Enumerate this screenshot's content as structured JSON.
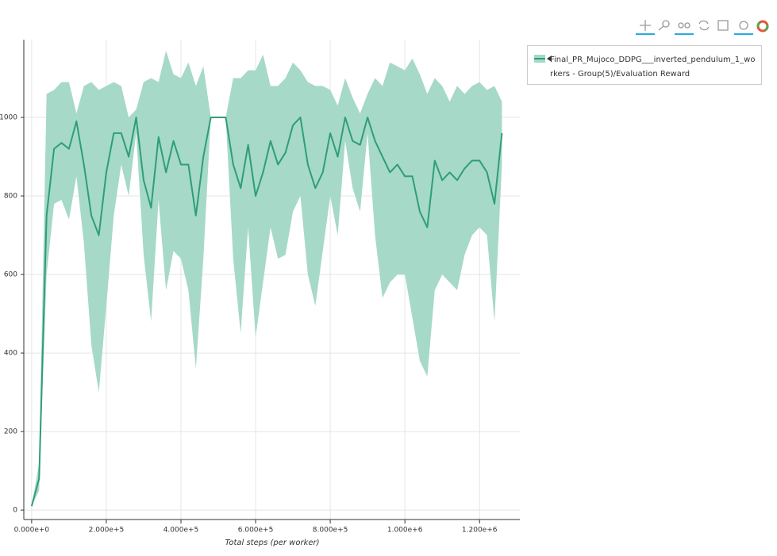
{
  "chart_data": {
    "type": "line",
    "x_label": "Total steps (per worker)",
    "x": [
      0,
      20000,
      40000,
      60000,
      80000,
      100000,
      120000,
      140000,
      160000,
      180000,
      200000,
      220000,
      240000,
      260000,
      280000,
      300000,
      320000,
      340000,
      360000,
      380000,
      400000,
      420000,
      440000,
      460000,
      480000,
      500000,
      520000,
      540000,
      560000,
      580000,
      600000,
      620000,
      640000,
      660000,
      680000,
      700000,
      720000,
      740000,
      760000,
      780000,
      800000,
      820000,
      840000,
      860000,
      880000,
      900000,
      920000,
      940000,
      960000,
      980000,
      1000000,
      1020000,
      1040000,
      1060000,
      1080000,
      1100000,
      1120000,
      1140000,
      1160000,
      1180000,
      1200000,
      1220000,
      1240000,
      1260000
    ],
    "series": [
      {
        "name": "Final_PR_Mujoco_DDPG___inverted_pendulum_1_workers - Group(5)/Evaluation Reward",
        "color": "#2e9e78",
        "band_color": "#a6d9c8",
        "values": [
          10,
          80,
          750,
          920,
          935,
          920,
          990,
          880,
          750,
          700,
          860,
          960,
          960,
          900,
          1000,
          840,
          770,
          950,
          860,
          940,
          880,
          880,
          750,
          900,
          1000,
          1000,
          1000,
          880,
          820,
          930,
          800,
          860,
          940,
          880,
          910,
          980,
          1000,
          880,
          820,
          860,
          960,
          900,
          1000,
          940,
          930,
          1000,
          940,
          900,
          860,
          880,
          850,
          850,
          760,
          720,
          890,
          840,
          860,
          840,
          870,
          890,
          890,
          860,
          780,
          960
        ],
        "lower": [
          10,
          50,
          600,
          780,
          790,
          740,
          850,
          680,
          420,
          300,
          520,
          750,
          880,
          800,
          960,
          650,
          480,
          790,
          560,
          660,
          640,
          560,
          360,
          640,
          1000,
          1000,
          1000,
          640,
          450,
          720,
          440,
          580,
          720,
          640,
          650,
          760,
          800,
          600,
          520,
          660,
          800,
          700,
          940,
          820,
          760,
          960,
          700,
          540,
          580,
          600,
          600,
          490,
          380,
          340,
          560,
          600,
          580,
          560,
          650,
          700,
          720,
          700,
          480,
          880
        ],
        "upper": [
          10,
          120,
          1060,
          1070,
          1090,
          1090,
          1010,
          1080,
          1090,
          1070,
          1080,
          1090,
          1080,
          1000,
          1020,
          1090,
          1100,
          1090,
          1170,
          1110,
          1100,
          1140,
          1080,
          1130,
          1000,
          1000,
          1000,
          1100,
          1100,
          1120,
          1120,
          1160,
          1080,
          1080,
          1100,
          1140,
          1120,
          1090,
          1080,
          1080,
          1070,
          1030,
          1100,
          1050,
          1010,
          1060,
          1100,
          1080,
          1140,
          1130,
          1120,
          1150,
          1110,
          1060,
          1100,
          1080,
          1040,
          1080,
          1060,
          1080,
          1090,
          1070,
          1080,
          1040
        ]
      }
    ],
    "xlim": [
      -21000,
      1308000
    ],
    "ylim": [
      -24,
      1198
    ],
    "xticks": [
      {
        "value": 0,
        "label": "0.000e+0"
      },
      {
        "value": 200000,
        "label": "2.000e+5"
      },
      {
        "value": 400000,
        "label": "4.000e+5"
      },
      {
        "value": 600000,
        "label": "6.000e+5"
      },
      {
        "value": 800000,
        "label": "8.000e+5"
      },
      {
        "value": 1000000,
        "label": "1.000e+6"
      },
      {
        "value": 1200000,
        "label": "1.200e+6"
      }
    ],
    "yticks": [
      0,
      200,
      400,
      600,
      800,
      1000
    ],
    "grid": true
  }
}
